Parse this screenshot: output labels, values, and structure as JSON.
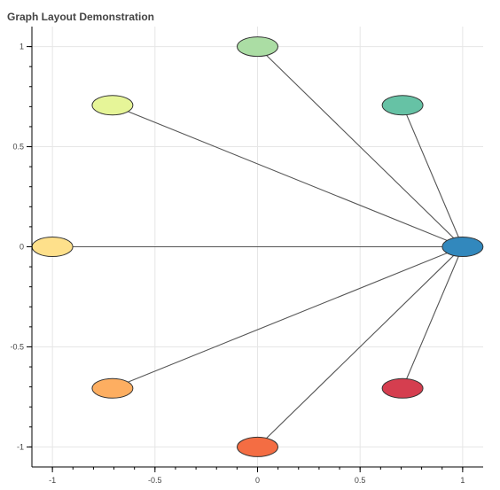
{
  "title": "Graph Layout Demonstration",
  "chart_data": {
    "type": "scatter",
    "title": "Graph Layout Demonstration",
    "xlabel": "",
    "ylabel": "",
    "xlim": [
      -1.1,
      1.1
    ],
    "ylim": [
      -1.1,
      1.1
    ],
    "x_ticks": [
      -1,
      -0.5,
      0,
      0.5,
      1
    ],
    "x_tick_labels": [
      "-1",
      "-0.5",
      "0",
      "0.5",
      "1"
    ],
    "y_ticks": [
      -1,
      -0.5,
      0,
      0.5,
      1
    ],
    "y_tick_labels": [
      "-1",
      "-0.5",
      "0",
      "0.5",
      "1"
    ],
    "grid": true,
    "nodes": [
      {
        "x": 1,
        "y": 0,
        "color": "#3288bd"
      },
      {
        "x": 0.7071,
        "y": 0.7071,
        "color": "#66c2a5"
      },
      {
        "x": 0,
        "y": 1,
        "color": "#abdda4"
      },
      {
        "x": -0.7071,
        "y": 0.7071,
        "color": "#e6f598"
      },
      {
        "x": -1,
        "y": 0,
        "color": "#fee08b"
      },
      {
        "x": -0.7071,
        "y": -0.7071,
        "color": "#fdae61"
      },
      {
        "x": 0,
        "y": -1,
        "color": "#f46d43"
      },
      {
        "x": 0.7071,
        "y": -0.7071,
        "color": "#d53e4f"
      }
    ],
    "edges": [
      [
        0,
        1
      ],
      [
        0,
        2
      ],
      [
        0,
        3
      ],
      [
        0,
        4
      ],
      [
        0,
        5
      ],
      [
        0,
        6
      ],
      [
        0,
        7
      ]
    ]
  }
}
